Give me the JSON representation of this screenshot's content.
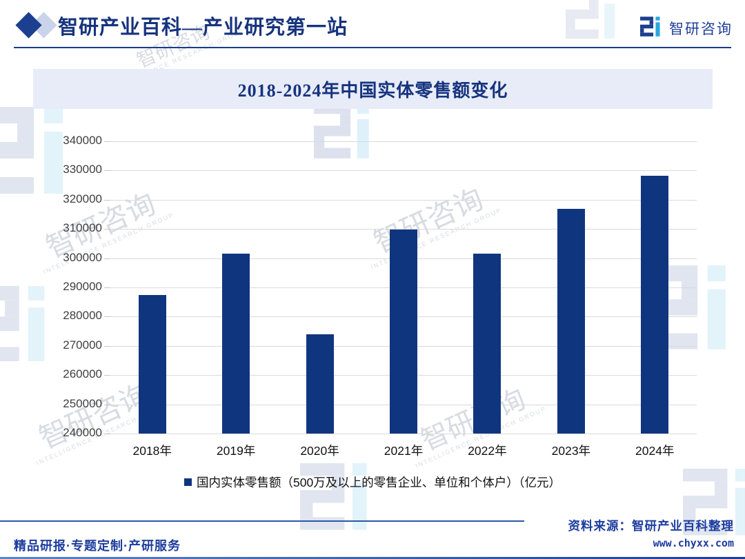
{
  "header": {
    "title": "智研产业百科—产业研究第一站",
    "brand_name": "智研咨询"
  },
  "chart_data": {
    "type": "bar",
    "title": "2018-2024年中国实体零售额变化",
    "categories": [
      "2018年",
      "2019年",
      "2020年",
      "2021年",
      "2022年",
      "2023年",
      "2024年"
    ],
    "values": [
      287400,
      301600,
      273900,
      309800,
      301600,
      316900,
      328100
    ],
    "series_name": "国内实体零售额（500万及以上的零售企业、单位和个体户）（亿元）",
    "xlabel": "",
    "ylabel": "",
    "ylim": [
      240000,
      340000
    ],
    "ytick_step": 10000,
    "grid": true,
    "legend_position": "bottom",
    "bar_color": "#10357f"
  },
  "footer": {
    "source": "资料来源：智研产业百科整理",
    "website": "www.chyxx.com",
    "services": "精品研报·专题定制·产研服务"
  },
  "watermark": {
    "text": "智研咨询",
    "caption": "INTELLIGENCE RESEARCH GROUP"
  },
  "colors": {
    "brand_navy": "#16337e",
    "bar_navy": "#10357f",
    "logo_cyan": "#2aa7df",
    "banner_bg": "#e8ecf8",
    "gridline": "#d9d9d9",
    "footer_blue": "#1d3d9e",
    "diamond_light": "#c9d3ea",
    "diamond_dark": "#1d3f8f"
  }
}
